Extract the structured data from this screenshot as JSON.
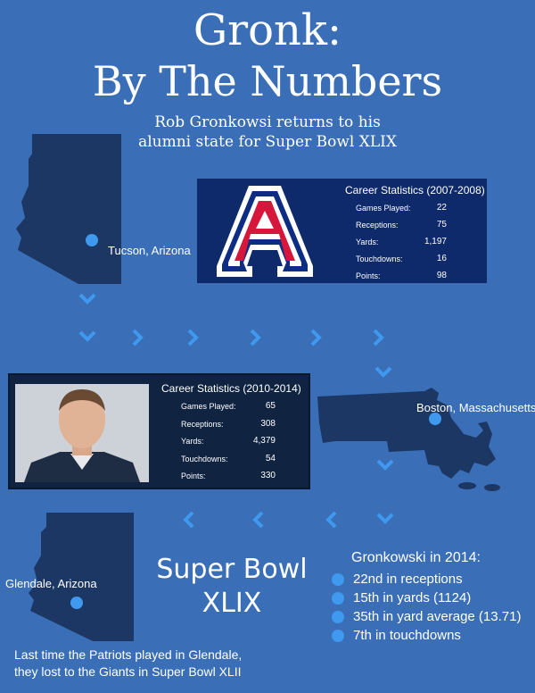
{
  "title": {
    "line1": "Gronk:",
    "line2": "By The Numbers"
  },
  "subtitle": {
    "line1": "Rob Gronkowsi returns to his",
    "line2": "alumni state for Super Bowl XLIX"
  },
  "locations": {
    "tucson": "Tucson, Arizona",
    "boston": "Boston, Massachusetts",
    "glendale": "Glendale, Arizona"
  },
  "arizona_stats": {
    "title": "Career Statistics (2007-2008)",
    "rows": [
      {
        "label": "Games Played:",
        "value": "22"
      },
      {
        "label": "Receptions:",
        "value": "75"
      },
      {
        "label": "Yards:",
        "value": "1,197"
      },
      {
        "label": "Touchdowns:",
        "value": "16"
      },
      {
        "label": "Points:",
        "value": "98"
      }
    ]
  },
  "patriots_stats": {
    "title": "Career Statistics (2010-2014)",
    "rows": [
      {
        "label": "Games Played:",
        "value": "65"
      },
      {
        "label": "Receptions:",
        "value": "308"
      },
      {
        "label": "Yards:",
        "value": "4,379"
      },
      {
        "label": "Touchdowns:",
        "value": "54"
      },
      {
        "label": "Points:",
        "value": "330"
      }
    ]
  },
  "super_bowl": {
    "line1": "Super Bowl",
    "line2": "XLIX"
  },
  "season_2014": {
    "heading": "Gronkowski in 2014:",
    "items": [
      "22nd in receptions",
      "15th in yards (1124)",
      "35th in yard average (13.71)",
      "7th in touchdowns"
    ]
  },
  "footnote": {
    "line1": "Last time the Patriots played in Glendale,",
    "line2": "they lost to the Giants in Super Bowl XLII"
  },
  "colors": {
    "background": "#3a6fb8",
    "state_fill": "#1c3764",
    "panel": "#0e2a6b",
    "arrow": "#3f99ee",
    "arizona_red": "#d6163a",
    "arizona_blue": "#0c2d83"
  },
  "icons": [
    "arizona-state-map",
    "massachusetts-state-map",
    "arizona-wildcats-logo",
    "player-photo",
    "arrow-down-icon",
    "arrow-right-icon",
    "arrow-left-icon",
    "bullet-dot"
  ]
}
